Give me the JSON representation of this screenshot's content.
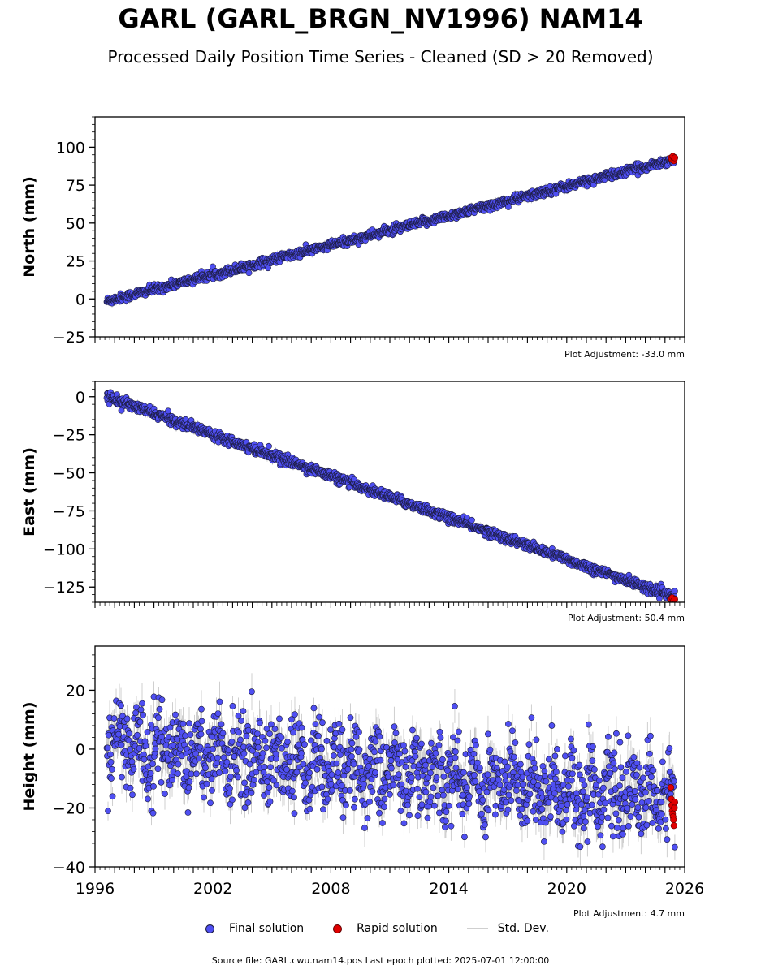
{
  "title": "GARL (GARL_BRGN_NV1996) NAM14",
  "subtitle": "Processed Daily Position Time Series - Cleaned (SD > 20 Removed)",
  "legend": {
    "final_label": "Final solution",
    "rapid_label": "Rapid solution",
    "std_label": "Std. Dev."
  },
  "source": "Source file: GARL.cwu.nam14.pos  Last epoch plotted: 2025-07-01 12:00:00",
  "colors": {
    "final": "#4f4ff2",
    "rapid": "#e00000",
    "std": "#bcbcbc",
    "edge": "#1a1a3a"
  },
  "chart_data": [
    {
      "type": "scatter",
      "component": "North",
      "ylabel": "North (mm)",
      "ylim": [
        -25,
        120
      ],
      "yticks": [
        -25,
        0,
        25,
        50,
        75,
        100
      ],
      "ytick_labels": [
        "−25",
        "0",
        "25",
        "50",
        "75",
        "100"
      ],
      "xlim": [
        1996,
        2026
      ],
      "adjustment": "Plot Adjustment: -33.0 mm",
      "start_year": 1996.6,
      "end_year": 2025.5,
      "trend_start": -1.5,
      "trend_end": 92,
      "noise_sd": 1.4,
      "rapid": {
        "x_start": 2025.3,
        "x_end": 2025.5,
        "values": [
          93,
          92,
          94,
          91,
          93
        ]
      },
      "series": [
        {
          "name": "Final solution",
          "role": "final"
        },
        {
          "name": "Rapid solution",
          "role": "rapid"
        }
      ]
    },
    {
      "type": "scatter",
      "component": "East",
      "ylabel": "East (mm)",
      "ylim": [
        -135,
        10
      ],
      "yticks": [
        -125,
        -100,
        -75,
        -50,
        -25,
        0
      ],
      "ytick_labels": [
        "−125",
        "−100",
        "−75",
        "−50",
        "−25",
        "0"
      ],
      "xlim": [
        1996,
        2026
      ],
      "adjustment": "Plot Adjustment: 50.4 mm",
      "start_year": 1996.6,
      "end_year": 2025.5,
      "trend_start": 0,
      "trend_end": -132,
      "noise_sd": 1.5,
      "rapid": {
        "x_start": 2025.3,
        "x_end": 2025.5,
        "values": [
          -133,
          -132,
          -134,
          -133
        ]
      },
      "series": [
        {
          "name": "Final solution",
          "role": "final"
        },
        {
          "name": "Rapid solution",
          "role": "rapid"
        }
      ]
    },
    {
      "type": "scatter",
      "component": "Height",
      "ylabel": "Height (mm)",
      "ylim": [
        -40,
        35
      ],
      "yticks": [
        -40,
        -20,
        0,
        20
      ],
      "ytick_labels": [
        "−40",
        "−20",
        "0",
        "20"
      ],
      "xlim": [
        1996,
        2026
      ],
      "xticks": [
        1996,
        2002,
        2008,
        2014,
        2020,
        2026
      ],
      "xtick_labels": [
        "1996",
        "2002",
        "2008",
        "2014",
        "2020",
        "2026"
      ],
      "adjustment": "Plot Adjustment: 4.7 mm",
      "start_year": 1996.6,
      "end_year": 2025.5,
      "trend_start": 2,
      "trend_end": -17,
      "noise_sd": 7,
      "rapid": {
        "x_start": 2025.3,
        "x_end": 2025.5,
        "values": [
          -13,
          -17,
          -19,
          -21,
          -22,
          -23,
          -24,
          -26,
          -20,
          -18
        ]
      },
      "series": [
        {
          "name": "Final solution",
          "role": "final"
        },
        {
          "name": "Rapid solution",
          "role": "rapid"
        }
      ]
    }
  ]
}
